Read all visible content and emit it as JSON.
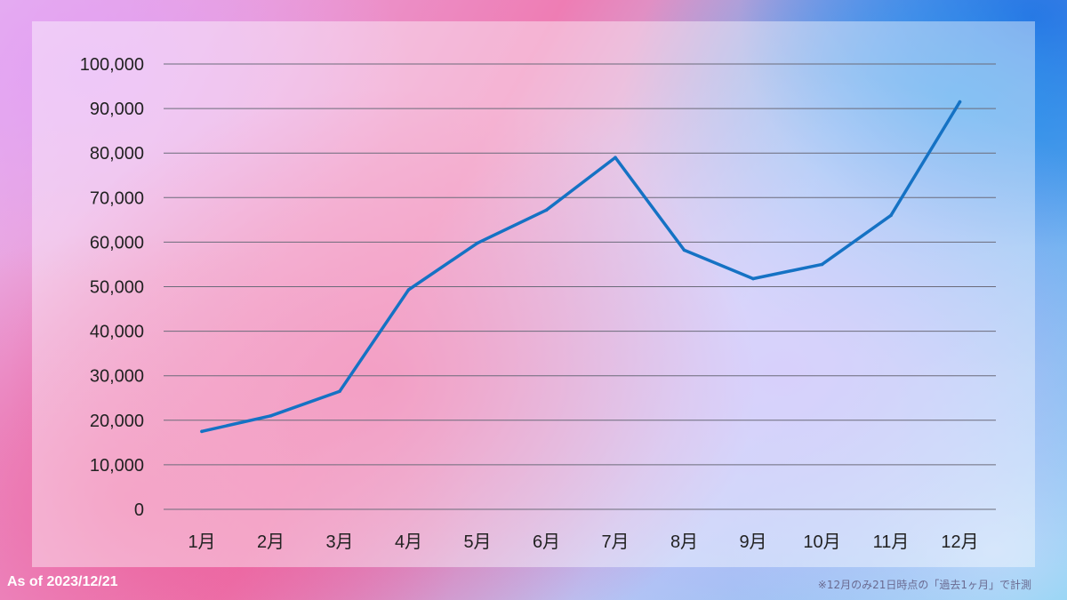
{
  "chart_data": {
    "type": "line",
    "categories": [
      "1月",
      "2月",
      "3月",
      "4月",
      "5月",
      "6月",
      "7月",
      "8月",
      "9月",
      "10月",
      "11月",
      "12月"
    ],
    "series": [
      {
        "values": [
          17500,
          21000,
          26500,
          49300,
          59800,
          67200,
          79000,
          58200,
          51800,
          55000,
          66000,
          91500
        ]
      }
    ],
    "ylim": [
      0,
      100000
    ],
    "yticks": [
      0,
      10000,
      20000,
      30000,
      40000,
      50000,
      60000,
      70000,
      80000,
      90000,
      100000
    ],
    "ytick_labels": [
      "0",
      "10,000",
      "20,000",
      "30,000",
      "40,000",
      "50,000",
      "60,000",
      "70,000",
      "80,000",
      "90,000",
      "100,000"
    ],
    "grid": true,
    "line_color": "#1572c4",
    "grid_color": "#6b6b7a"
  },
  "footer": {
    "as_of": "As of 2023/12/21",
    "note": "※12月のみ21日時点の「過去1ヶ月」で計測"
  }
}
